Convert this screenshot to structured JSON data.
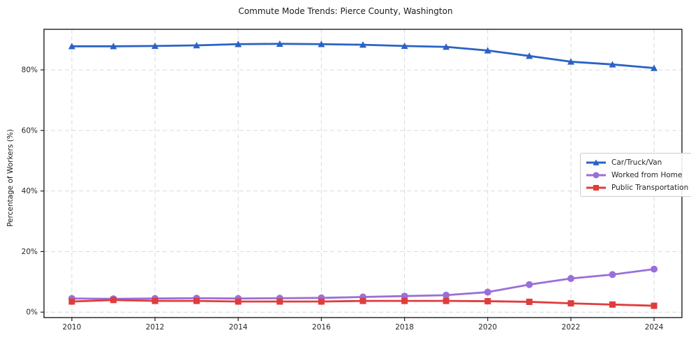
{
  "chart_data": {
    "type": "line",
    "title": "Commute Mode Trends: Pierce County, Washington",
    "xlabel": "",
    "ylabel": "Percentage of Workers (%)",
    "x": [
      2010,
      2011,
      2012,
      2013,
      2014,
      2015,
      2016,
      2017,
      2018,
      2019,
      2020,
      2021,
      2022,
      2023,
      2024
    ],
    "xticks": [
      2010,
      2012,
      2014,
      2016,
      2018,
      2020,
      2022,
      2024
    ],
    "yticks": [
      0,
      20,
      40,
      60,
      80
    ],
    "ytick_labels": [
      "0%",
      "20%",
      "40%",
      "60%",
      "80%"
    ],
    "xlim": [
      2009.33,
      2024.67
    ],
    "ylim": [
      -1.8,
      93.4
    ],
    "grid": true,
    "grid_style": "dashed",
    "legend_position": "center-right",
    "series": [
      {
        "name": "Car/Truck/Van",
        "color": "#2b62c6",
        "marker": "triangle",
        "values": [
          87.8,
          87.8,
          87.9,
          88.1,
          88.5,
          88.6,
          88.5,
          88.3,
          87.9,
          87.6,
          86.4,
          84.6,
          82.7,
          81.8,
          80.6
        ]
      },
      {
        "name": "Worked from Home",
        "color": "#9a6fd8",
        "marker": "circle",
        "values": [
          4.5,
          4.4,
          4.5,
          4.6,
          4.5,
          4.6,
          4.7,
          5.0,
          5.3,
          5.6,
          6.6,
          9.1,
          11.1,
          12.4,
          14.2
        ]
      },
      {
        "name": "Public Transportation",
        "color": "#e03c3c",
        "marker": "square",
        "values": [
          3.5,
          4.0,
          3.7,
          3.7,
          3.5,
          3.5,
          3.5,
          3.7,
          3.7,
          3.7,
          3.6,
          3.4,
          2.9,
          2.5,
          2.1
        ]
      }
    ],
    "colors": {
      "grid": "#d9d9d9",
      "spine": "#1f1f1f",
      "tick_label": "#262626",
      "title": "#1a1a1a"
    }
  }
}
